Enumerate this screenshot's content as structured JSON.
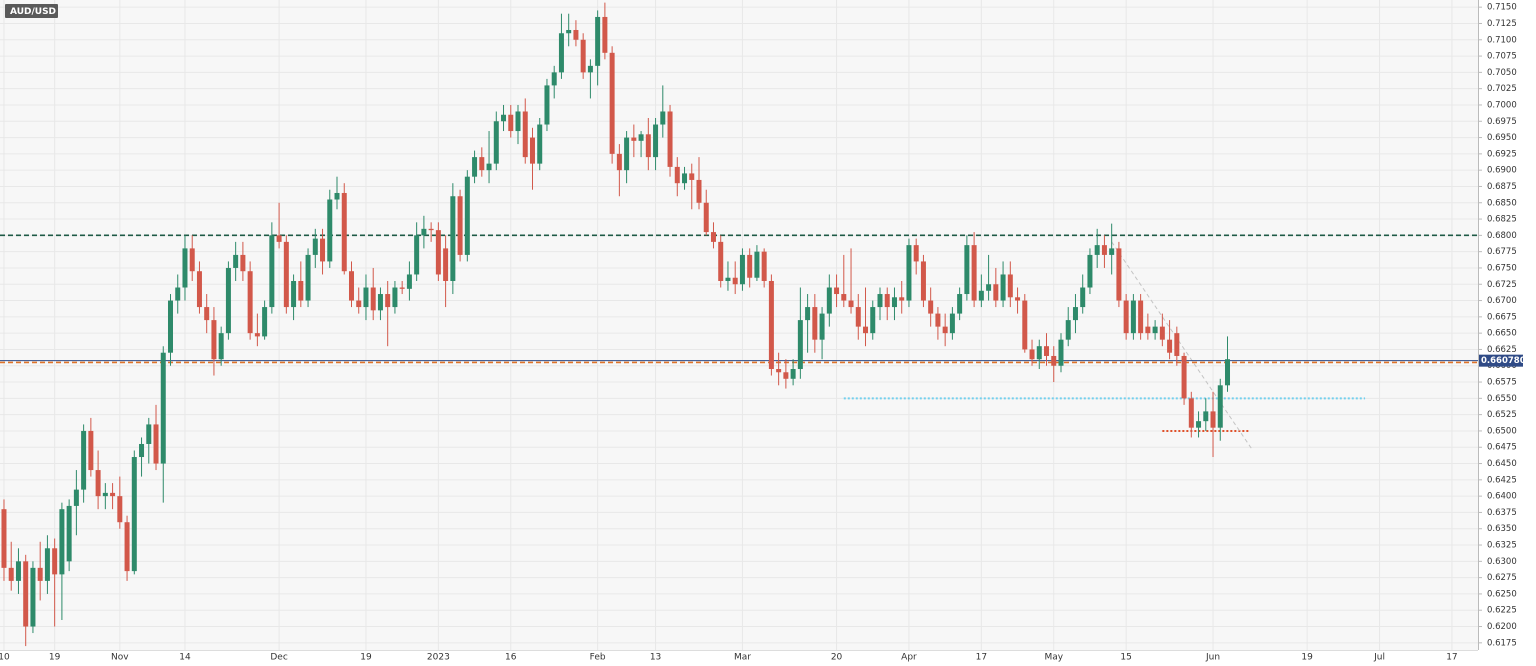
{
  "chart_data": {
    "type": "candlestick",
    "symbol": "AUD/USD",
    "up_color": "#2e8a6a",
    "down_color": "#d2584a",
    "grid": true,
    "ylim": [
      0.6164,
      0.7161
    ],
    "xlim": [
      -0.55,
      203.6
    ],
    "yticks": [
      {
        "value": 0.6175,
        "label": "0.6175"
      },
      {
        "value": 0.62,
        "label": "0.6200"
      },
      {
        "value": 0.6225,
        "label": "0.6225"
      },
      {
        "value": 0.625,
        "label": "0.6250"
      },
      {
        "value": 0.6275,
        "label": "0.6275"
      },
      {
        "value": 0.63,
        "label": "0.6300"
      },
      {
        "value": 0.6325,
        "label": "0.6325"
      },
      {
        "value": 0.635,
        "label": "0.6350"
      },
      {
        "value": 0.6375,
        "label": "0.6375"
      },
      {
        "value": 0.64,
        "label": "0.6400"
      },
      {
        "value": 0.6425,
        "label": "0.6425"
      },
      {
        "value": 0.645,
        "label": "0.6450"
      },
      {
        "value": 0.6475,
        "label": "0.6475"
      },
      {
        "value": 0.65,
        "label": "0.6500"
      },
      {
        "value": 0.6525,
        "label": "0.6525"
      },
      {
        "value": 0.655,
        "label": "0.6550"
      },
      {
        "value": 0.6575,
        "label": "0.6575"
      },
      {
        "value": 0.66,
        "label": "0.6600"
      },
      {
        "value": 0.6625,
        "label": "0.6625"
      },
      {
        "value": 0.665,
        "label": "0.6650"
      },
      {
        "value": 0.6675,
        "label": "0.6675"
      },
      {
        "value": 0.67,
        "label": "0.6700"
      },
      {
        "value": 0.6725,
        "label": "0.6725"
      },
      {
        "value": 0.675,
        "label": "0.6750"
      },
      {
        "value": 0.6775,
        "label": "0.6775"
      },
      {
        "value": 0.68,
        "label": "0.6800"
      },
      {
        "value": 0.6825,
        "label": "0.6825"
      },
      {
        "value": 0.685,
        "label": "0.6850"
      },
      {
        "value": 0.6875,
        "label": "0.6875"
      },
      {
        "value": 0.69,
        "label": "0.6900"
      },
      {
        "value": 0.6925,
        "label": "0.6925"
      },
      {
        "value": 0.695,
        "label": "0.6950"
      },
      {
        "value": 0.6975,
        "label": "0.6975"
      },
      {
        "value": 0.7,
        "label": "0.7000"
      },
      {
        "value": 0.7025,
        "label": "0.7025"
      },
      {
        "value": 0.705,
        "label": "0.7050"
      },
      {
        "value": 0.7075,
        "label": "0.7075"
      },
      {
        "value": 0.71,
        "label": "0.7100"
      },
      {
        "value": 0.7125,
        "label": "0.7125"
      },
      {
        "value": 0.715,
        "label": "0.7150"
      }
    ],
    "xticks": [
      {
        "value": 0,
        "label": "10"
      },
      {
        "value": 7,
        "label": "19"
      },
      {
        "value": 16,
        "label": "Nov"
      },
      {
        "value": 25,
        "label": "14"
      },
      {
        "value": 38,
        "label": "Dec"
      },
      {
        "value": 50,
        "label": "19"
      },
      {
        "value": 60,
        "label": "2023"
      },
      {
        "value": 70,
        "label": "16"
      },
      {
        "value": 82,
        "label": "Feb"
      },
      {
        "value": 90,
        "label": "13"
      },
      {
        "value": 102,
        "label": "Mar"
      },
      {
        "value": 115,
        "label": "20"
      },
      {
        "value": 125,
        "label": "Apr"
      },
      {
        "value": 135,
        "label": "17"
      },
      {
        "value": 145,
        "label": "May"
      },
      {
        "value": 155,
        "label": "15"
      },
      {
        "value": 167,
        "label": "Jun"
      },
      {
        "value": 180,
        "label": "19"
      },
      {
        "value": 190,
        "label": "Jul"
      },
      {
        "value": 200,
        "label": "17"
      }
    ],
    "ohlc": [
      [
        0.638,
        0.6395,
        0.627,
        0.629
      ],
      [
        0.629,
        0.633,
        0.6255,
        0.627
      ],
      [
        0.627,
        0.632,
        0.625,
        0.63
      ],
      [
        0.63,
        0.631,
        0.617,
        0.62
      ],
      [
        0.62,
        0.63,
        0.619,
        0.629
      ],
      [
        0.629,
        0.633,
        0.624,
        0.627
      ],
      [
        0.627,
        0.634,
        0.625,
        0.632
      ],
      [
        0.632,
        0.6335,
        0.62,
        0.628
      ],
      [
        0.628,
        0.639,
        0.621,
        0.638
      ],
      [
        0.63,
        0.6395,
        0.6285,
        0.6385
      ],
      [
        0.6385,
        0.644,
        0.634,
        0.641
      ],
      [
        0.641,
        0.651,
        0.639,
        0.65
      ],
      [
        0.65,
        0.652,
        0.643,
        0.644
      ],
      [
        0.644,
        0.647,
        0.638,
        0.64
      ],
      [
        0.64,
        0.642,
        0.638,
        0.6405
      ],
      [
        0.6405,
        0.642,
        0.638,
        0.64
      ],
      [
        0.64,
        0.643,
        0.635,
        0.636
      ],
      [
        0.636,
        0.637,
        0.627,
        0.6285
      ],
      [
        0.6285,
        0.647,
        0.628,
        0.646
      ],
      [
        0.646,
        0.649,
        0.643,
        0.648
      ],
      [
        0.648,
        0.652,
        0.645,
        0.651
      ],
      [
        0.651,
        0.654,
        0.644,
        0.645
      ],
      [
        0.645,
        0.663,
        0.639,
        0.662
      ],
      [
        0.662,
        0.671,
        0.66,
        0.67
      ],
      [
        0.67,
        0.674,
        0.668,
        0.672
      ],
      [
        0.672,
        0.68,
        0.67,
        0.678
      ],
      [
        0.678,
        0.68,
        0.673,
        0.6745
      ],
      [
        0.6745,
        0.676,
        0.668,
        0.669
      ],
      [
        0.669,
        0.671,
        0.665,
        0.667
      ],
      [
        0.667,
        0.669,
        0.6585,
        0.661
      ],
      [
        0.661,
        0.666,
        0.66,
        0.665
      ],
      [
        0.665,
        0.676,
        0.664,
        0.675
      ],
      [
        0.675,
        0.679,
        0.673,
        0.677
      ],
      [
        0.677,
        0.679,
        0.673,
        0.6745
      ],
      [
        0.6745,
        0.676,
        0.664,
        0.665
      ],
      [
        0.665,
        0.668,
        0.663,
        0.6645
      ],
      [
        0.6645,
        0.67,
        0.664,
        0.669
      ],
      [
        0.669,
        0.682,
        0.668,
        0.68
      ],
      [
        0.68,
        0.685,
        0.678,
        0.679
      ],
      [
        0.679,
        0.68,
        0.668,
        0.669
      ],
      [
        0.669,
        0.674,
        0.667,
        0.673
      ],
      [
        0.673,
        0.676,
        0.669,
        0.67
      ],
      [
        0.67,
        0.678,
        0.669,
        0.677
      ],
      [
        0.677,
        0.681,
        0.675,
        0.6795
      ],
      [
        0.6795,
        0.681,
        0.674,
        0.676
      ],
      [
        0.676,
        0.687,
        0.675,
        0.6855
      ],
      [
        0.6855,
        0.689,
        0.684,
        0.6865
      ],
      [
        0.6865,
        0.688,
        0.674,
        0.6745
      ],
      [
        0.6745,
        0.676,
        0.669,
        0.67
      ],
      [
        0.67,
        0.672,
        0.668,
        0.669
      ],
      [
        0.669,
        0.674,
        0.667,
        0.672
      ],
      [
        0.672,
        0.675,
        0.667,
        0.6685
      ],
      [
        0.6685,
        0.672,
        0.667,
        0.671
      ],
      [
        0.671,
        0.673,
        0.663,
        0.669
      ],
      [
        0.669,
        0.673,
        0.668,
        0.672
      ],
      [
        0.672,
        0.673,
        0.671,
        0.6718
      ],
      [
        0.6718,
        0.676,
        0.67,
        0.674
      ],
      [
        0.674,
        0.682,
        0.673,
        0.68
      ],
      [
        0.68,
        0.683,
        0.678,
        0.681
      ],
      [
        0.681,
        0.682,
        0.679,
        0.6808
      ],
      [
        0.6808,
        0.682,
        0.673,
        0.674
      ],
      [
        0.678,
        0.68,
        0.669,
        0.673
      ],
      [
        0.673,
        0.688,
        0.671,
        0.686
      ],
      [
        0.686,
        0.687,
        0.676,
        0.677
      ],
      [
        0.677,
        0.69,
        0.676,
        0.689
      ],
      [
        0.689,
        0.693,
        0.688,
        0.692
      ],
      [
        0.692,
        0.6935,
        0.689,
        0.69
      ],
      [
        0.69,
        0.696,
        0.688,
        0.691
      ],
      [
        0.691,
        0.699,
        0.69,
        0.6975
      ],
      [
        0.6975,
        0.7,
        0.696,
        0.6985
      ],
      [
        0.6985,
        0.7,
        0.695,
        0.696
      ],
      [
        0.696,
        0.7,
        0.694,
        0.699
      ],
      [
        0.699,
        0.701,
        0.691,
        0.692
      ],
      [
        0.695,
        0.6965,
        0.687,
        0.691
      ],
      [
        0.691,
        0.698,
        0.69,
        0.697
      ],
      [
        0.697,
        0.704,
        0.696,
        0.703
      ],
      [
        0.703,
        0.706,
        0.701,
        0.705
      ],
      [
        0.705,
        0.714,
        0.704,
        0.711
      ],
      [
        0.711,
        0.714,
        0.709,
        0.7115
      ],
      [
        0.7115,
        0.713,
        0.709,
        0.71
      ],
      [
        0.71,
        0.711,
        0.704,
        0.705
      ],
      [
        0.705,
        0.707,
        0.701,
        0.706
      ],
      [
        0.706,
        0.7145,
        0.703,
        0.7135
      ],
      [
        0.7135,
        0.7157,
        0.707,
        0.708
      ],
      [
        0.708,
        0.709,
        0.691,
        0.6925
      ],
      [
        0.6925,
        0.694,
        0.686,
        0.69
      ],
      [
        0.69,
        0.696,
        0.688,
        0.695
      ],
      [
        0.695,
        0.697,
        0.692,
        0.6945
      ],
      [
        0.6945,
        0.696,
        0.692,
        0.6955
      ],
      [
        0.6955,
        0.698,
        0.69,
        0.692
      ],
      [
        0.692,
        0.698,
        0.69,
        0.697
      ],
      [
        0.697,
        0.703,
        0.695,
        0.699
      ],
      [
        0.699,
        0.7,
        0.689,
        0.6905
      ],
      [
        0.6905,
        0.692,
        0.686,
        0.688
      ],
      [
        0.688,
        0.6905,
        0.687,
        0.6895
      ],
      [
        0.6895,
        0.691,
        0.684,
        0.6885
      ],
      [
        0.6885,
        0.692,
        0.684,
        0.685
      ],
      [
        0.685,
        0.687,
        0.68,
        0.6805
      ],
      [
        0.6805,
        0.682,
        0.678,
        0.679
      ],
      [
        0.679,
        0.68,
        0.672,
        0.673
      ],
      [
        0.673,
        0.676,
        0.6715,
        0.6735
      ],
      [
        0.6735,
        0.676,
        0.671,
        0.6725
      ],
      [
        0.6725,
        0.678,
        0.6715,
        0.677
      ],
      [
        0.677,
        0.678,
        0.672,
        0.6735
      ],
      [
        0.6735,
        0.6785,
        0.673,
        0.6775
      ],
      [
        0.6775,
        0.678,
        0.672,
        0.673
      ],
      [
        0.673,
        0.674,
        0.6585,
        0.6595
      ],
      [
        0.6595,
        0.662,
        0.657,
        0.659
      ],
      [
        0.659,
        0.661,
        0.6565,
        0.658
      ],
      [
        0.658,
        0.661,
        0.657,
        0.6595
      ],
      [
        0.6595,
        0.672,
        0.658,
        0.667
      ],
      [
        0.667,
        0.671,
        0.662,
        0.669
      ],
      [
        0.669,
        0.671,
        0.662,
        0.664
      ],
      [
        0.664,
        0.669,
        0.661,
        0.668
      ],
      [
        0.668,
        0.674,
        0.666,
        0.672
      ],
      [
        0.672,
        0.674,
        0.669,
        0.671
      ],
      [
        0.671,
        0.677,
        0.669,
        0.67
      ],
      [
        0.67,
        0.678,
        0.668,
        0.669
      ],
      [
        0.669,
        0.671,
        0.664,
        0.666
      ],
      [
        0.666,
        0.672,
        0.663,
        0.665
      ],
      [
        0.665,
        0.67,
        0.664,
        0.669
      ],
      [
        0.669,
        0.672,
        0.667,
        0.671
      ],
      [
        0.671,
        0.672,
        0.667,
        0.669
      ],
      [
        0.669,
        0.672,
        0.667,
        0.6705
      ],
      [
        0.6705,
        0.673,
        0.668,
        0.67
      ],
      [
        0.67,
        0.6795,
        0.669,
        0.6785
      ],
      [
        0.6785,
        0.6795,
        0.674,
        0.676
      ],
      [
        0.676,
        0.677,
        0.669,
        0.67
      ],
      [
        0.67,
        0.672,
        0.666,
        0.668
      ],
      [
        0.668,
        0.669,
        0.664,
        0.666
      ],
      [
        0.666,
        0.668,
        0.663,
        0.665
      ],
      [
        0.665,
        0.669,
        0.664,
        0.668
      ],
      [
        0.668,
        0.672,
        0.667,
        0.671
      ],
      [
        0.671,
        0.68,
        0.67,
        0.6785
      ],
      [
        0.6785,
        0.6805,
        0.669,
        0.67
      ],
      [
        0.67,
        0.674,
        0.669,
        0.6715
      ],
      [
        0.6715,
        0.677,
        0.67,
        0.6725
      ],
      [
        0.6725,
        0.675,
        0.669,
        0.67
      ],
      [
        0.67,
        0.676,
        0.669,
        0.674
      ],
      [
        0.674,
        0.676,
        0.669,
        0.6705
      ],
      [
        0.6705,
        0.672,
        0.668,
        0.67
      ],
      [
        0.67,
        0.671,
        0.662,
        0.6625
      ],
      [
        0.6625,
        0.664,
        0.66,
        0.661
      ],
      [
        0.661,
        0.664,
        0.6595,
        0.663
      ],
      [
        0.663,
        0.665,
        0.66,
        0.6615
      ],
      [
        0.6615,
        0.663,
        0.6575,
        0.66
      ],
      [
        0.66,
        0.665,
        0.659,
        0.664
      ],
      [
        0.664,
        0.669,
        0.663,
        0.667
      ],
      [
        0.667,
        0.671,
        0.665,
        0.669
      ],
      [
        0.669,
        0.674,
        0.668,
        0.672
      ],
      [
        0.672,
        0.678,
        0.671,
        0.677
      ],
      [
        0.677,
        0.681,
        0.675,
        0.6785
      ],
      [
        0.6785,
        0.68,
        0.675,
        0.677
      ],
      [
        0.677,
        0.6818,
        0.674,
        0.678
      ],
      [
        0.678,
        0.679,
        0.669,
        0.67
      ],
      [
        0.67,
        0.671,
        0.664,
        0.665
      ],
      [
        0.665,
        0.671,
        0.664,
        0.67
      ],
      [
        0.67,
        0.671,
        0.664,
        0.665
      ],
      [
        0.666,
        0.668,
        0.664,
        0.665
      ],
      [
        0.665,
        0.667,
        0.664,
        0.666
      ],
      [
        0.666,
        0.668,
        0.663,
        0.664
      ],
      [
        0.664,
        0.667,
        0.661,
        0.662
      ],
      [
        0.665,
        0.666,
        0.66,
        0.6615
      ],
      [
        0.6615,
        0.662,
        0.654,
        0.655
      ],
      [
        0.655,
        0.656,
        0.649,
        0.6505
      ],
      [
        0.6505,
        0.653,
        0.649,
        0.6515
      ],
      [
        0.6515,
        0.655,
        0.65,
        0.653
      ],
      [
        0.653,
        0.656,
        0.646,
        0.6505
      ],
      [
        0.6505,
        0.658,
        0.6485,
        0.657
      ],
      [
        0.657,
        0.6645,
        0.656,
        0.661
      ]
    ],
    "levels": [
      {
        "value": 0.68,
        "color": "#1e5a46",
        "style": "dashed"
      },
      {
        "value": 0.6605,
        "color": "#e0742a",
        "style": "dashed"
      }
    ],
    "segments": [
      {
        "x": [
          116,
          188
        ],
        "value": 0.655,
        "color": "#72d0ee",
        "style": "dotted"
      },
      {
        "x": [
          160,
          172
        ],
        "value": 0.65,
        "color": "#e0512a",
        "style": "dotted"
      }
    ],
    "trendline": {
      "x": [
        153,
        172.5
      ],
      "y": [
        0.679,
        0.647
      ],
      "color": "#c4c4c4"
    },
    "last_price": {
      "value": 0.66078,
      "label": "0.660780",
      "color": "#2f4a86"
    }
  }
}
